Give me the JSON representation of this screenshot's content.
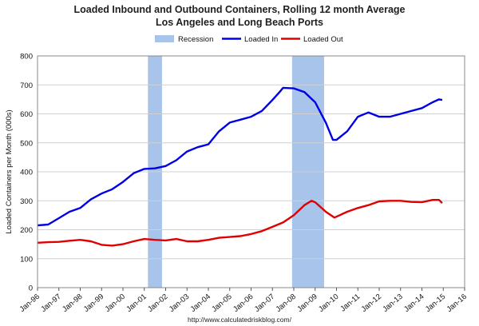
{
  "chart_data": {
    "type": "line",
    "title": "Loaded Inbound and Outbound Containers, Rolling 12 month Average",
    "subtitle": "Los Angeles and Long Beach Ports",
    "ylabel": "Loaded Containers per Month (000s)",
    "xlabel": "",
    "source": "http://www.calculatedriskblog.com/",
    "ylim": [
      0,
      800
    ],
    "yticks": [
      0,
      100,
      200,
      300,
      400,
      500,
      600,
      700,
      800
    ],
    "xlim": [
      1996,
      2016
    ],
    "xticks": [
      "Jan-96",
      "Jan-97",
      "Jan-98",
      "Jan-99",
      "Jan-00",
      "Jan-01",
      "Jan-02",
      "Jan-03",
      "Jan-04",
      "Jan-05",
      "Jan-06",
      "Jan-07",
      "Jan-08",
      "Jan-09",
      "Jan-10",
      "Jan-11",
      "Jan-12",
      "Jan-13",
      "Jan-14",
      "Jan-15",
      "Jan-16"
    ],
    "grid": true,
    "legend": "top",
    "recessions": [
      {
        "start": 2001.17,
        "end": 2001.83
      },
      {
        "start": 2007.92,
        "end": 2009.42
      }
    ],
    "series": [
      {
        "name": "Loaded In",
        "color": "#0000e6",
        "x": [
          1996.0,
          1996.5,
          1997.0,
          1997.5,
          1998.0,
          1998.5,
          1999.0,
          1999.5,
          2000.0,
          2000.5,
          2001.0,
          2001.5,
          2002.0,
          2002.5,
          2003.0,
          2003.5,
          2004.0,
          2004.5,
          2005.0,
          2005.5,
          2006.0,
          2006.5,
          2007.0,
          2007.33,
          2007.5,
          2008.0,
          2008.5,
          2009.0,
          2009.5,
          2009.83,
          2010.0,
          2010.5,
          2011.0,
          2011.5,
          2012.0,
          2012.5,
          2013.0,
          2013.5,
          2014.0,
          2014.5,
          2014.8,
          2014.95
        ],
        "values": [
          215,
          218,
          240,
          262,
          275,
          305,
          325,
          340,
          365,
          395,
          410,
          412,
          420,
          440,
          470,
          485,
          495,
          540,
          570,
          580,
          590,
          610,
          648,
          675,
          690,
          688,
          675,
          640,
          570,
          510,
          510,
          540,
          590,
          605,
          590,
          590,
          600,
          610,
          620,
          640,
          650,
          648
        ]
      },
      {
        "name": "Loaded Out",
        "color": "#e00000",
        "x": [
          1996.0,
          1996.5,
          1997.0,
          1997.5,
          1998.0,
          1998.5,
          1999.0,
          1999.5,
          2000.0,
          2000.5,
          2001.0,
          2001.5,
          2002.0,
          2002.5,
          2003.0,
          2003.5,
          2004.0,
          2004.5,
          2005.0,
          2005.5,
          2006.0,
          2006.5,
          2007.0,
          2007.5,
          2008.0,
          2008.5,
          2008.83,
          2009.0,
          2009.5,
          2009.9,
          2010.0,
          2010.5,
          2011.0,
          2011.5,
          2012.0,
          2012.5,
          2013.0,
          2013.5,
          2014.0,
          2014.5,
          2014.8,
          2014.95
        ],
        "values": [
          155,
          157,
          158,
          162,
          165,
          160,
          148,
          145,
          150,
          160,
          168,
          165,
          163,
          168,
          160,
          160,
          165,
          172,
          175,
          178,
          185,
          195,
          210,
          225,
          250,
          285,
          300,
          295,
          262,
          242,
          245,
          262,
          275,
          285,
          298,
          300,
          300,
          296,
          295,
          303,
          303,
          292
        ]
      }
    ]
  },
  "legend_items": [
    {
      "label": "Recession",
      "color": "#a9c4eb"
    },
    {
      "label": "Loaded In",
      "color": "#0000e6"
    },
    {
      "label": "Loaded Out",
      "color": "#e00000"
    }
  ]
}
